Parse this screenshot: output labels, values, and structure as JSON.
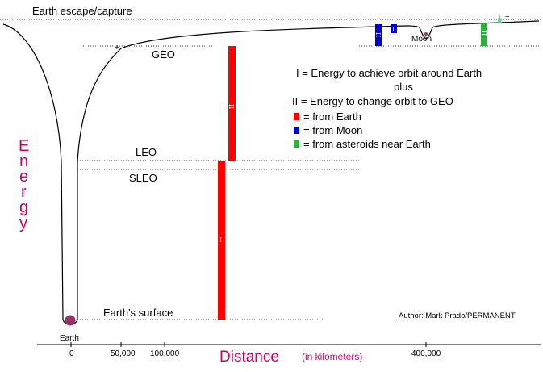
{
  "title_left": "Earth escape/capture",
  "levels": {
    "geo": "GEO",
    "leo": "LEO",
    "sleo": "SLEO",
    "surface": "Earth's surface"
  },
  "bodies": {
    "earth": "Earth",
    "moon": "Moon"
  },
  "bar_labels": {
    "one": "I",
    "two": "II"
  },
  "legend": {
    "line1": "I = Energy to achieve orbit around Earth",
    "line2": "plus",
    "line3": "II = Energy to change orbit to GEO",
    "from_earth": "= from Earth",
    "from_moon": "= from Moon",
    "from_asteroids": "= from asteroids near Earth"
  },
  "colors": {
    "earth_bar": "#ff0000",
    "moon_bar": "#0000cc",
    "asteroid_bar": "#33aa44",
    "axis_title": "#cc0066",
    "earth_dot": "#993366"
  },
  "axis": {
    "y_title_letters": [
      "E",
      "n",
      "e",
      "r",
      "g",
      "y"
    ],
    "x_title": "Distance",
    "x_unit": "(in kilometers)",
    "ticks": [
      "0",
      "50,000",
      "100,000",
      "400,000"
    ]
  },
  "credit": "Author: Mark Prado/PERMANENT"
}
